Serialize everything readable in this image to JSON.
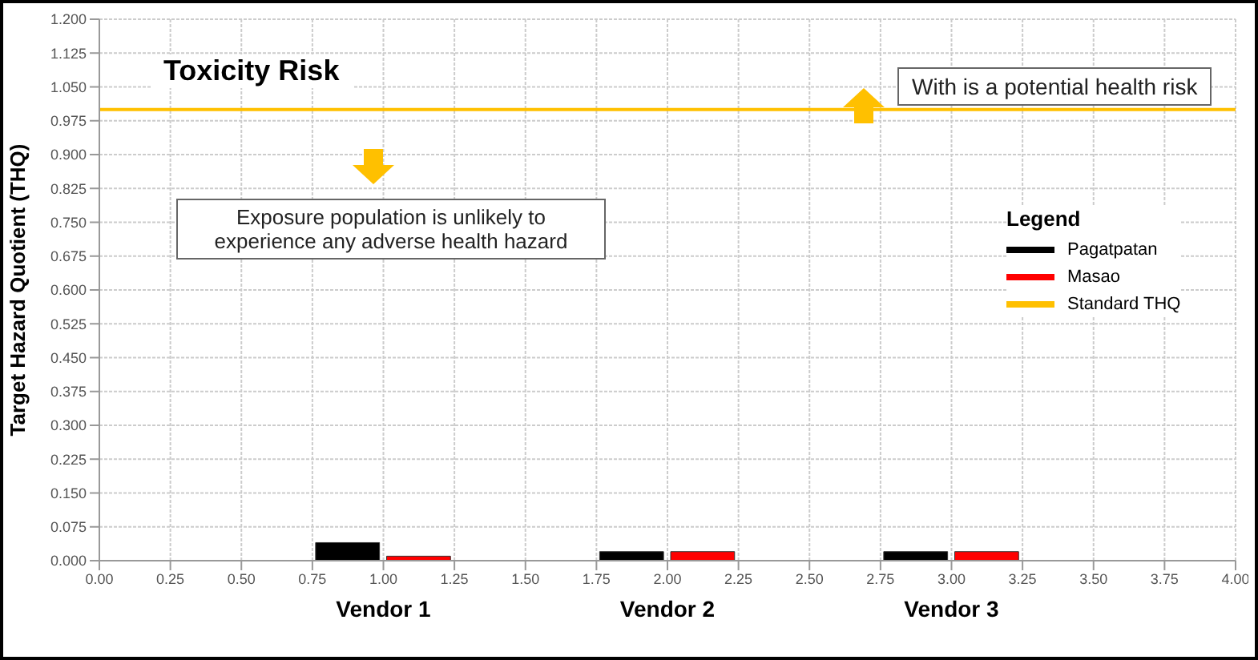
{
  "chart_data": {
    "type": "bar",
    "title": "Toxicity Risk",
    "ylabel": "Target Hazard Quotient (THQ)",
    "legend_title": "Legend",
    "legend": "right",
    "series": [
      {
        "name": "Pagatpatan",
        "color": "#000000",
        "x": [
          0.875,
          1.875,
          2.875
        ],
        "values": [
          0.04,
          0.02,
          0.02
        ]
      },
      {
        "name": "Masao",
        "color": "#ff0000",
        "x": [
          1.125,
          2.125,
          3.125
        ],
        "values": [
          0.01,
          0.02,
          0.02
        ]
      }
    ],
    "ref_lines": [
      {
        "axis": "y",
        "value": 1,
        "label": "Standard THQ",
        "color": "#ffc000"
      }
    ],
    "annotations": [
      "With is a potential health risk",
      "Exposure population is unlikely to experience any adverse health hazard",
      {
        "text": "Vendor 1",
        "x": 1,
        "y": 0
      },
      {
        "text": "Vendor 2",
        "x": 2,
        "y": 0
      },
      {
        "text": "Vendor 3",
        "x": 3,
        "y": 0
      }
    ],
    "xlim": [
      0,
      4
    ],
    "xticks": [
      {
        "value": 0,
        "label": "0.00"
      },
      {
        "value": 0.25,
        "label": "0.25"
      },
      {
        "value": 0.5,
        "label": "0.50"
      },
      {
        "value": 0.75,
        "label": "0.75"
      },
      {
        "value": 1,
        "label": "1.00"
      },
      {
        "value": 1.25,
        "label": "1.25"
      },
      {
        "value": 1.5,
        "label": "1.50"
      },
      {
        "value": 1.75,
        "label": "1.75"
      },
      {
        "value": 2,
        "label": "2.00"
      },
      {
        "value": 2.25,
        "label": "2.25"
      },
      {
        "value": 2.5,
        "label": "2.50"
      },
      {
        "value": 2.75,
        "label": "2.75"
      },
      {
        "value": 3,
        "label": "3.00"
      },
      {
        "value": 3.25,
        "label": "3.25"
      },
      {
        "value": 3.5,
        "label": "3.50"
      },
      {
        "value": 3.75,
        "label": "3.75"
      },
      {
        "value": 4,
        "label": "4.00"
      }
    ],
    "ylim": [
      0,
      1.2
    ],
    "yticks": [
      {
        "value": 0,
        "label": "0.000"
      },
      {
        "value": 0.075,
        "label": "0.075"
      },
      {
        "value": 0.15,
        "label": "0.150"
      },
      {
        "value": 0.225,
        "label": "0.225"
      },
      {
        "value": 0.3,
        "label": "0.300"
      },
      {
        "value": 0.375,
        "label": "0.375"
      },
      {
        "value": 0.45,
        "label": "0.450"
      },
      {
        "value": 0.525,
        "label": "0.525"
      },
      {
        "value": 0.6,
        "label": "0.600"
      },
      {
        "value": 0.675,
        "label": "0.675"
      },
      {
        "value": 0.75,
        "label": "0.750"
      },
      {
        "value": 0.825,
        "label": "0.825"
      },
      {
        "value": 0.9,
        "label": "0.900"
      },
      {
        "value": 0.975,
        "label": "0.975"
      },
      {
        "value": 1.05,
        "label": "1.050"
      },
      {
        "value": 1.125,
        "label": "1.125"
      },
      {
        "value": 1.2,
        "label": "1.200"
      }
    ],
    "grid": true
  }
}
